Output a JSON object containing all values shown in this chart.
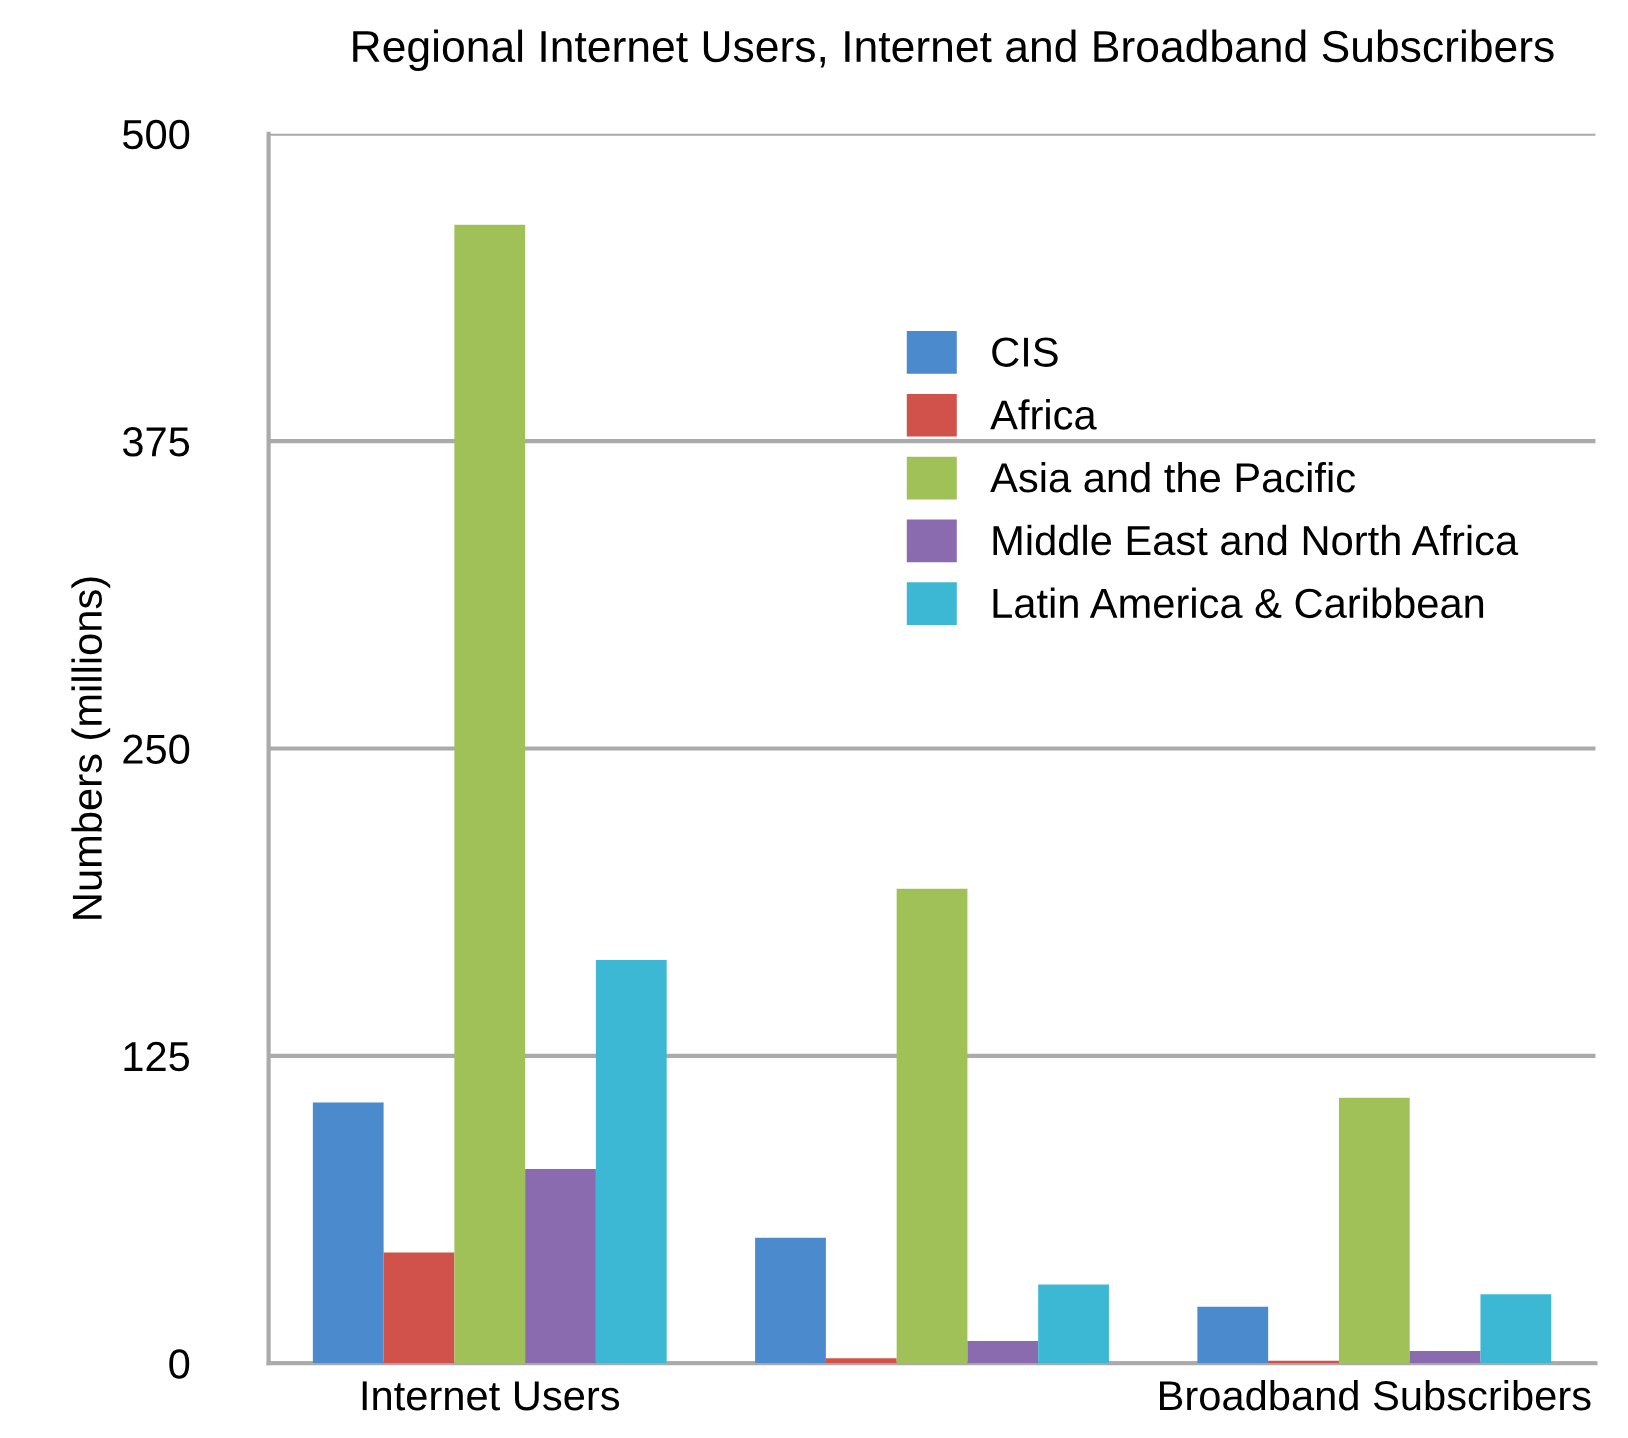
{
  "chart_data": {
    "type": "bar",
    "title": "Regional Internet Users, Internet and Broadband Subscribers",
    "ylabel": "Numbers (millions)",
    "categories": [
      "Internet Users",
      null,
      "Broadband Subscribers"
    ],
    "series": [
      {
        "name": "CIS",
        "color": "#4a8acd",
        "values": [
          106,
          51,
          23
        ]
      },
      {
        "name": "Africa",
        "color": "#d0524a",
        "values": [
          45,
          2,
          1
        ]
      },
      {
        "name": "Asia and the Pacific",
        "color": "#a0c058",
        "values": [
          463,
          193,
          108
        ]
      },
      {
        "name": "Middle East and North Africa",
        "color": "#8a6bb0",
        "values": [
          79,
          9,
          5
        ]
      },
      {
        "name": "Latin America & Caribbean",
        "color": "#3cb8d4",
        "values": [
          164,
          32,
          28
        ]
      }
    ],
    "ylim": [
      0,
      500
    ],
    "yticks": [
      0,
      125,
      250,
      375,
      500
    ],
    "grid": "y",
    "legend": "top right"
  }
}
